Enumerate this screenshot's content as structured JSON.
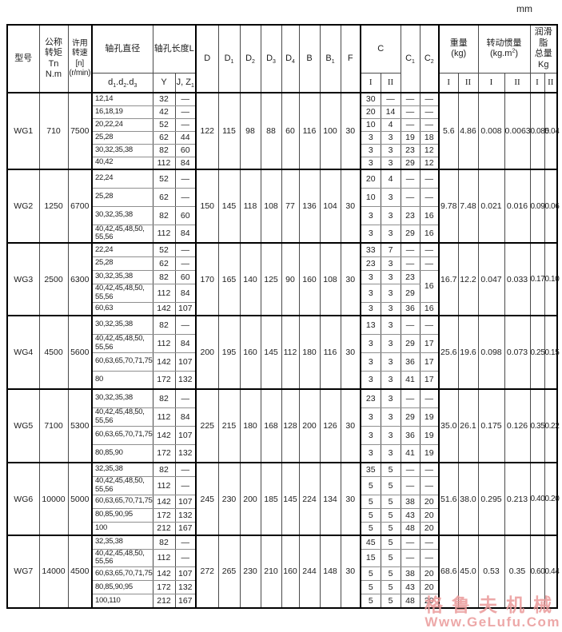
{
  "page": {
    "unit_label": "mm"
  },
  "watermark": {
    "line1": "格鲁夫机械",
    "line2": "Www.GeLufu.Com",
    "color": "#ea9a9a"
  },
  "table": {
    "header": {
      "model": "型号",
      "torque": "公称\n转矩\nTn\nN.m",
      "speed": "许用\n转速\n[n]\n(r/min)",
      "bore_diameter": "轴孔直径",
      "bore_sub_d1": "d",
      "bore_sub_1": "1",
      "bore_sub_d2": ".d",
      "bore_sub_2": "2",
      "bore_sub_d3": ".d",
      "bore_sub_3": "3",
      "bore_length": "轴孔长度L",
      "y": "Y",
      "jz_base": "J, Z",
      "jz_sub": "1",
      "D": "D",
      "D1_base": "D",
      "D1_sub": "1",
      "D2_base": "D",
      "D2_sub": "2",
      "D3_base": "D",
      "D3_sub": "3",
      "D4_base": "D",
      "D4_sub": "4",
      "B": "B",
      "B1_base": "B",
      "B1_sub": "1",
      "F": "F",
      "C": "C",
      "C1_base": "C",
      "C1_sub": "1",
      "C2_base": "C",
      "C2_sub": "2",
      "weight": "重量\n(kg)",
      "inertia_line1": "转动惯量",
      "inertia_p1": "(kg.m",
      "inertia_sup": "2",
      "inertia_p2": ")",
      "grease": "润滑脂\n总量\nKg",
      "rn_i": "I",
      "rn_ii": "II"
    },
    "groups": [
      {
        "model": "WG1",
        "torque": "710",
        "speed": "7500",
        "D": "122",
        "D1": "115",
        "D2": "98",
        "D3": "88",
        "D4": "60",
        "B": "116",
        "B1": "100",
        "F": "30",
        "weight_i": "5.6",
        "weight_ii": "4.86",
        "inertia_i": "0.008",
        "inertia_ii": "0.0063",
        "grease_i": "0.085",
        "grease_ii": "0.04",
        "rows": [
          {
            "d": "12,14",
            "y": "32",
            "jz": "—",
            "ci": "30",
            "cii": "—",
            "c1": "—",
            "c2": "—"
          },
          {
            "d": "16,18,19",
            "y": "42",
            "jz": "—",
            "ci": "20",
            "cii": "14",
            "c1": "—",
            "c2": "—"
          },
          {
            "d": "20,22,24",
            "y": "52",
            "jz": "—",
            "ci": "10",
            "cii": "4",
            "c1": "—",
            "c2": "—"
          },
          {
            "d": "25,28",
            "y": "62",
            "jz": "44",
            "ci": "3",
            "cii": "3",
            "c1": "19",
            "c2": "18"
          },
          {
            "d": "30,32,35,38",
            "y": "82",
            "jz": "60",
            "ci": "3",
            "cii": "3",
            "c1": "23",
            "c2": "12"
          },
          {
            "d": "40,42",
            "y": "112",
            "jz": "84",
            "ci": "3",
            "cii": "3",
            "c1": "29",
            "c2": "12"
          }
        ]
      },
      {
        "model": "WG2",
        "torque": "1250",
        "speed": "6700",
        "D": "150",
        "D1": "145",
        "D2": "118",
        "D3": "108",
        "D4": "77",
        "B": "136",
        "B1": "104",
        "F": "30",
        "weight_i": "9.78",
        "weight_ii": "7.48",
        "inertia_i": "0.021",
        "inertia_ii": "0.016",
        "grease_i": "0.09",
        "grease_ii": "0.06",
        "rows": [
          {
            "d": "22,24",
            "y": "52",
            "jz": "—",
            "ci": "20",
            "cii": "4",
            "c1": "—",
            "c2": "—"
          },
          {
            "d": "25,28",
            "y": "62",
            "jz": "—",
            "ci": "10",
            "cii": "3",
            "c1": "—",
            "c2": "—"
          },
          {
            "d": "30,32,35,38",
            "y": "82",
            "jz": "60",
            "ci": "3",
            "cii": "3",
            "c1": "23",
            "c2": "16"
          },
          {
            "d": "40,42,45,48,50,\n55,56",
            "y": "112",
            "jz": "84",
            "ci": "3",
            "cii": "3",
            "c1": "29",
            "c2": "16"
          }
        ]
      },
      {
        "model": "WG3",
        "torque": "2500",
        "speed": "6300",
        "D": "170",
        "D1": "165",
        "D2": "140",
        "D3": "125",
        "D4": "90",
        "B": "160",
        "B1": "108",
        "F": "30",
        "weight_i": "16.7",
        "weight_ii": "12.2",
        "inertia_i": "0.047",
        "inertia_ii": "0.033",
        "grease_i": "0.17",
        "grease_ii": "0.10",
        "rows": [
          {
            "d": "22,24",
            "y": "52",
            "jz": "—",
            "ci": "33",
            "cii": "7",
            "c1": "—",
            "c2": "—"
          },
          {
            "d": "25,28",
            "y": "62",
            "jz": "—",
            "ci": "23",
            "cii": "3",
            "c1": "—",
            "c2": "—"
          },
          {
            "d": "30,32,35,38",
            "y": "82",
            "jz": "60",
            "ci": "3",
            "cii": "3",
            "c1": "23",
            "c2": "16",
            "c2_rowspan": 2
          },
          {
            "d": "40,42,45,48,50,\n55,56",
            "y": "112",
            "jz": "84",
            "ci": "3",
            "cii": "3",
            "c1": "29"
          },
          {
            "d": "60,63",
            "y": "142",
            "jz": "107",
            "ci": "3",
            "cii": "3",
            "c1": "36",
            "c2": "16"
          }
        ]
      },
      {
        "model": "WG4",
        "torque": "4500",
        "speed": "5600",
        "D": "200",
        "D1": "195",
        "D2": "160",
        "D3": "145",
        "D4": "112",
        "B": "180",
        "B1": "116",
        "F": "30",
        "weight_i": "25.6",
        "weight_ii": "19.6",
        "inertia_i": "0.098",
        "inertia_ii": "0.073",
        "grease_i": "0.25",
        "grease_ii": "0.15",
        "rows": [
          {
            "d": "30,32,35,38",
            "y": "82",
            "jz": "—",
            "ci": "13",
            "cii": "3",
            "c1": "—",
            "c2": "—"
          },
          {
            "d": "40,42,45,48,50,\n55,56",
            "y": "112",
            "jz": "84",
            "ci": "3",
            "cii": "3",
            "c1": "29",
            "c2": "17"
          },
          {
            "d": "60,63,65,70,71,75",
            "y": "142",
            "jz": "107",
            "ci": "3",
            "cii": "3",
            "c1": "36",
            "c2": "17"
          },
          {
            "d": "80",
            "y": "172",
            "jz": "132",
            "ci": "3",
            "cii": "3",
            "c1": "41",
            "c2": "17"
          }
        ]
      },
      {
        "model": "WG5",
        "torque": "7100",
        "speed": "5300",
        "D": "225",
        "D1": "215",
        "D2": "180",
        "D3": "168",
        "D4": "128",
        "B": "200",
        "B1": "126",
        "F": "30",
        "weight_i": "35.0",
        "weight_ii": "26.1",
        "inertia_i": "0.175",
        "inertia_ii": "0.126",
        "grease_i": "0.35",
        "grease_ii": "0.22",
        "rows": [
          {
            "d": "30,32,35,38",
            "y": "82",
            "jz": "—",
            "ci": "23",
            "cii": "3",
            "c1": "—",
            "c2": "—"
          },
          {
            "d": "40,42,45,48,50,\n55,56",
            "y": "112",
            "jz": "84",
            "ci": "3",
            "cii": "3",
            "c1": "29",
            "c2": "19"
          },
          {
            "d": "60,63,65,70,71,75",
            "y": "142",
            "jz": "107",
            "ci": "3",
            "cii": "3",
            "c1": "36",
            "c2": "19"
          },
          {
            "d": "80,85,90",
            "y": "172",
            "jz": "132",
            "ci": "3",
            "cii": "3",
            "c1": "41",
            "c2": "19"
          }
        ]
      },
      {
        "model": "WG6",
        "torque": "10000",
        "speed": "5000",
        "D": "245",
        "D1": "230",
        "D2": "200",
        "D3": "185",
        "D4": "145",
        "B": "224",
        "B1": "134",
        "F": "30",
        "weight_i": "51.6",
        "weight_ii": "38.0",
        "inertia_i": "0.295",
        "inertia_ii": "0.213",
        "grease_i": "0.40",
        "grease_ii": "0.20",
        "rows": [
          {
            "d": "32,35,38",
            "y": "82",
            "jz": "—",
            "ci": "35",
            "cii": "5",
            "c1": "—",
            "c2": "—"
          },
          {
            "d": "40,42,45,48,50,\n55,56",
            "y": "112",
            "jz": "—",
            "ci": "5",
            "cii": "5",
            "c1": "—",
            "c2": "—"
          },
          {
            "d": "60,63,65,70,71,75",
            "y": "142",
            "jz": "107",
            "ci": "5",
            "cii": "5",
            "c1": "38",
            "c2": "20"
          },
          {
            "d": "80,85,90,95",
            "y": "172",
            "jz": "132",
            "ci": "5",
            "cii": "5",
            "c1": "43",
            "c2": "20"
          },
          {
            "d": "100",
            "y": "212",
            "jz": "167",
            "ci": "5",
            "cii": "5",
            "c1": "48",
            "c2": "20"
          }
        ]
      },
      {
        "model": "WG7",
        "torque": "14000",
        "speed": "4500",
        "D": "272",
        "D1": "265",
        "D2": "230",
        "D3": "210",
        "D4": "160",
        "B": "244",
        "B1": "148",
        "F": "30",
        "weight_i": "68.6",
        "weight_ii": "45.0",
        "inertia_i": "0.53",
        "inertia_ii": "0.35",
        "grease_i": "0.60",
        "grease_ii": "0.44",
        "rows": [
          {
            "d": "32,35,38",
            "y": "82",
            "jz": "—",
            "ci": "45",
            "cii": "5",
            "c1": "—",
            "c2": "—"
          },
          {
            "d": "40,42,45,48,50,\n55,56",
            "y": "112",
            "jz": "—",
            "ci": "15",
            "cii": "5",
            "c1": "—",
            "c2": "—"
          },
          {
            "d": "60,63,65,70,71,75",
            "y": "142",
            "jz": "107",
            "ci": "5",
            "cii": "5",
            "c1": "38",
            "c2": "20"
          },
          {
            "d": "80,85,90,95",
            "y": "172",
            "jz": "132",
            "ci": "5",
            "cii": "5",
            "c1": "43",
            "c2": "20"
          },
          {
            "d": "100,110",
            "y": "212",
            "jz": "167",
            "ci": "5",
            "cii": "5",
            "c1": "48",
            "c2": "20"
          }
        ]
      }
    ]
  }
}
